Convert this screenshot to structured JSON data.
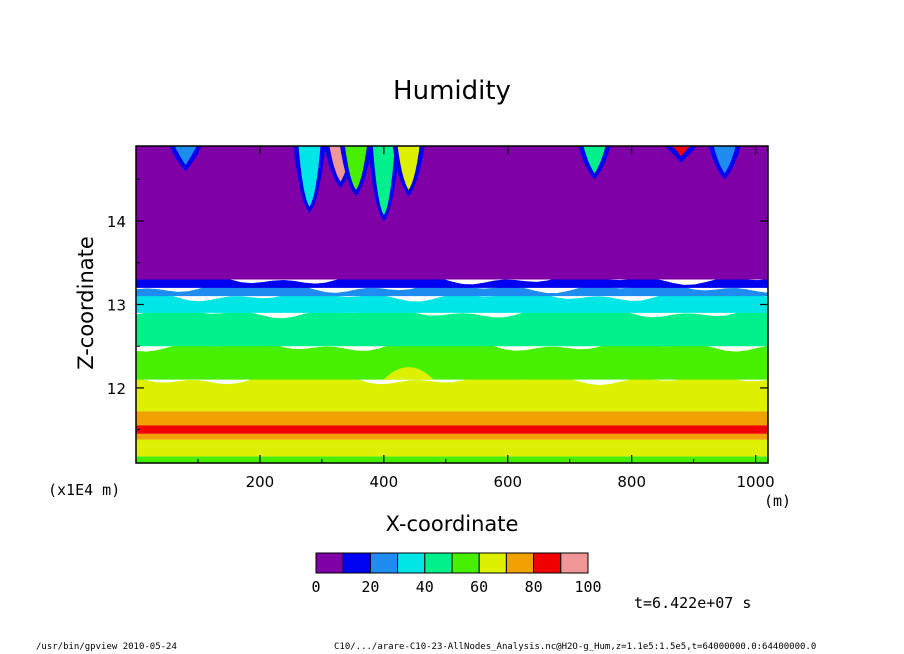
{
  "chart_data": {
    "type": "heatmap",
    "title": "Humidity",
    "xlabel": "X-coordinate",
    "ylabel": "Z-coordinate",
    "x_scale_note": "(x1E4 m)",
    "x_unit": "(m)",
    "xlim": [
      0,
      1020
    ],
    "ylim": [
      11.1,
      14.9
    ],
    "x_ticks": [
      200,
      400,
      600,
      800,
      1000
    ],
    "y_ticks": [
      12,
      13,
      14
    ],
    "x_tick_labels": [
      "200",
      "400",
      "600",
      "800",
      "1000"
    ],
    "y_tick_labels": [
      "12",
      "13",
      "14"
    ],
    "levels": [
      0,
      10,
      20,
      30,
      40,
      50,
      60,
      70,
      80,
      90,
      100
    ],
    "level_labels": [
      "0",
      "20",
      "40",
      "60",
      "80",
      "100"
    ],
    "level_label_values": [
      0,
      20,
      40,
      60,
      80,
      100
    ],
    "colors": [
      "#7e00a6",
      "#0000f0",
      "#1e8cf0",
      "#00e6e6",
      "#00f08c",
      "#46f000",
      "#dcf000",
      "#f0a000",
      "#f00000",
      "#f09696"
    ],
    "horizontal_bands": [
      {
        "z_min": 11.1,
        "z_max": 11.18,
        "value": 55
      },
      {
        "z_min": 11.18,
        "z_max": 11.3,
        "value": 65
      },
      {
        "z_min": 11.3,
        "z_max": 11.38,
        "value": 65
      },
      {
        "z_min": 11.38,
        "z_max": 11.45,
        "value": 75
      },
      {
        "z_min": 11.45,
        "z_max": 11.55,
        "value": 85
      },
      {
        "z_min": 11.55,
        "z_max": 11.72,
        "value": 75
      },
      {
        "z_min": 11.72,
        "z_max": 12.1,
        "value": 65
      },
      {
        "z_min": 12.1,
        "z_max": 12.5,
        "value": 55
      },
      {
        "z_min": 12.5,
        "z_max": 12.9,
        "value": 45
      },
      {
        "z_min": 12.9,
        "z_max": 13.1,
        "value": 35
      },
      {
        "z_min": 13.1,
        "z_max": 13.2,
        "value": 25
      },
      {
        "z_min": 13.2,
        "z_max": 13.3,
        "value": 15
      },
      {
        "z_min": 13.3,
        "z_max": 14.9,
        "value": 5
      }
    ],
    "upper_plumes": [
      {
        "x": 80,
        "z_bottom": 14.6,
        "value": 25
      },
      {
        "x": 280,
        "z_bottom": 14.1,
        "value": 35
      },
      {
        "x": 330,
        "z_bottom": 14.4,
        "value": 95
      },
      {
        "x": 355,
        "z_bottom": 14.3,
        "value": 55
      },
      {
        "x": 400,
        "z_bottom": 14.0,
        "value": 45
      },
      {
        "x": 440,
        "z_bottom": 14.3,
        "value": 65
      },
      {
        "x": 740,
        "z_bottom": 14.5,
        "value": 45
      },
      {
        "x": 880,
        "z_bottom": 14.7,
        "value": 85
      },
      {
        "x": 950,
        "z_bottom": 14.5,
        "value": 25
      }
    ]
  },
  "annotations": {
    "time": "t=6.422e+07 s",
    "footer_left": "/usr/bin/gpview   2010-05-24",
    "footer_right": "C10/.../arare-C10-23-AllNodes_Analysis.nc@H2O-g_Hum,z=1.1e5:1.5e5,t=64000000.0:64400000.0"
  }
}
